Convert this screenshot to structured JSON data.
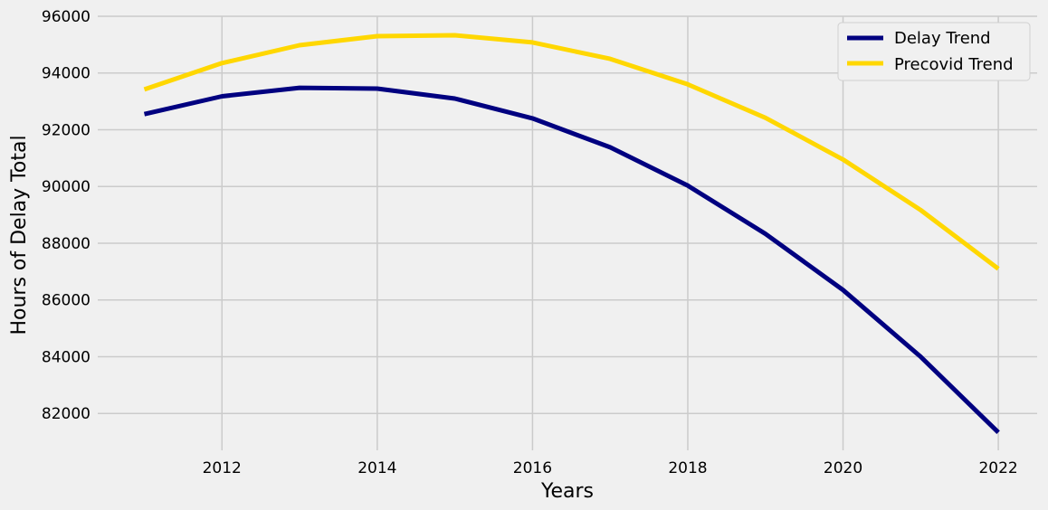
{
  "chart_data": {
    "type": "line",
    "title": "",
    "xlabel": "Years",
    "ylabel": "Hours of Delay Total",
    "xlim": [
      2010.4,
      2022.5
    ],
    "ylim": [
      80700,
      96000
    ],
    "x_ticks": [
      2012,
      2014,
      2016,
      2018,
      2020,
      2022
    ],
    "y_ticks": [
      82000,
      84000,
      86000,
      88000,
      90000,
      92000,
      94000,
      96000
    ],
    "grid": true,
    "legend_position": "top-right",
    "x": [
      2011,
      2012,
      2013,
      2014,
      2015,
      2016,
      2017,
      2018,
      2019,
      2020,
      2021,
      2022
    ],
    "series": [
      {
        "name": "Delay Trend",
        "color": "#000080",
        "values": [
          92550,
          93180,
          93480,
          93450,
          93100,
          92400,
          91380,
          90030,
          88330,
          86350,
          84000,
          81330
        ]
      },
      {
        "name": "Precovid Trend",
        "color": "#ffd700",
        "values": [
          93420,
          94350,
          94980,
          95300,
          95330,
          95080,
          94500,
          93600,
          92420,
          90950,
          89170,
          87100
        ]
      }
    ]
  }
}
